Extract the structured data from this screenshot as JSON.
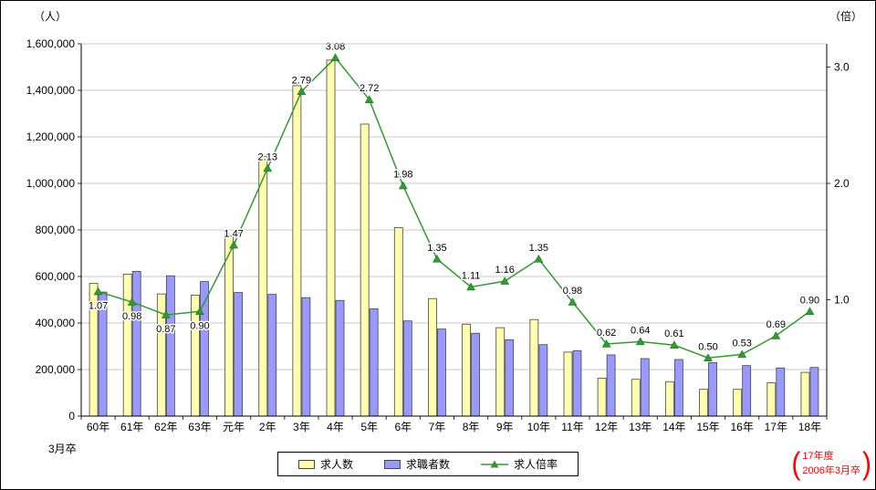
{
  "chart_data": {
    "type": "bar+line",
    "categories": [
      "60年",
      "61年",
      "62年",
      "63年",
      "元年",
      "2年",
      "3年",
      "4年",
      "5年",
      "6年",
      "7年",
      "8年",
      "9年",
      "10年",
      "11年",
      "12年",
      "13年",
      "14年",
      "15年",
      "16年",
      "17年",
      "18年"
    ],
    "series": [
      {
        "name": "求人数",
        "type": "bar",
        "axis": "left",
        "color": "#ffffad",
        "values": [
          570000,
          610000,
          525000,
          520000,
          780000,
          1115000,
          1420000,
          1530000,
          1255000,
          810000,
          505000,
          395000,
          380000,
          415000,
          275000,
          163000,
          158000,
          148000,
          115000,
          115000,
          143000,
          188000
        ]
      },
      {
        "name": "求職者数",
        "type": "bar",
        "axis": "left",
        "color": "#9999ff",
        "values": [
          533000,
          622000,
          603000,
          578000,
          531000,
          523000,
          509000,
          497000,
          461000,
          409000,
          374000,
          356000,
          328000,
          307000,
          281000,
          263000,
          247000,
          243000,
          230000,
          217000,
          207000,
          209000
        ]
      },
      {
        "name": "求人倍率",
        "type": "line",
        "axis": "right",
        "color": "#339933",
        "values": [
          1.07,
          0.98,
          0.87,
          0.9,
          1.47,
          2.13,
          2.79,
          3.08,
          2.72,
          1.98,
          1.35,
          1.11,
          1.16,
          1.35,
          0.98,
          0.62,
          0.64,
          0.61,
          0.5,
          0.53,
          0.69,
          0.9
        ]
      }
    ],
    "left_axis": {
      "title": "（人）",
      "min": 0,
      "max": 1600000,
      "ticks": [
        "0",
        "200,000",
        "400,000",
        "600,000",
        "800,000",
        "1,000,000",
        "1,200,000",
        "1,400,000",
        "1,600,000"
      ]
    },
    "right_axis": {
      "title": "（倍）",
      "min": 0,
      "max": 3.2,
      "ticks": [
        {
          "v": 1,
          "label": "1.0"
        },
        {
          "v": 2,
          "label": "2.0"
        },
        {
          "v": 3,
          "label": "3.0"
        }
      ]
    },
    "ratio_labels_below": [
      0,
      1,
      2,
      3
    ],
    "x_note": "3月卒",
    "grid": true,
    "legend_position": "bottom"
  },
  "annotation": {
    "bracket_left": "(",
    "line1": "17年度",
    "line2": "2006年3月卒",
    "bracket_right": ")"
  },
  "colors": {
    "grid": "#c9c9c9",
    "axis": "#000000",
    "annotation": "#ff0000",
    "bar1": "#ffffad",
    "bar2": "#9999ff",
    "line": "#339933"
  }
}
